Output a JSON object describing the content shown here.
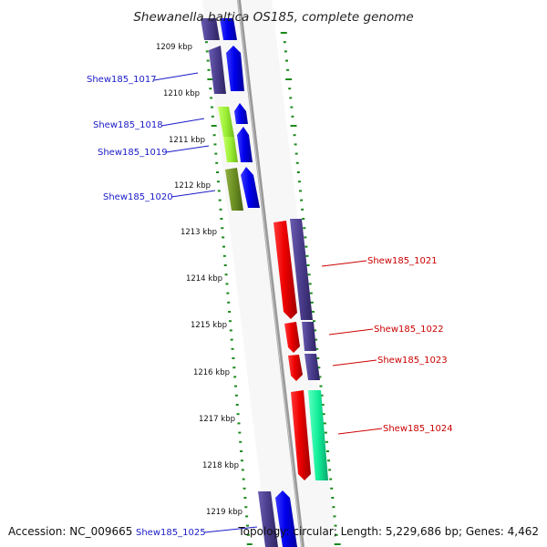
{
  "title": "Shewanella baltica OS185, complete genome",
  "footer": {
    "accession": "Accession: NC_009665",
    "topology": "Topology: circular; Length: 5,229,686 bp; Genes: 4,462"
  },
  "scale": {
    "ticks": [
      "1209 kbp",
      "1210 kbp",
      "1211 kbp",
      "1212 kbp",
      "1213 kbp",
      "1214 kbp",
      "1215 kbp",
      "1216 kbp",
      "1217 kbp",
      "1218 kbp",
      "1219 kbp"
    ]
  },
  "genes": [
    {
      "label": "Shew185_1017",
      "strand": "forward",
      "color": "#1a1ac8"
    },
    {
      "label": "Shew185_1018",
      "strand": "forward",
      "color": "#1a1ac8"
    },
    {
      "label": "Shew185_1019",
      "strand": "forward",
      "color": "#1a1ac8"
    },
    {
      "label": "Shew185_1020",
      "strand": "forward",
      "color": "#1a1ac8"
    },
    {
      "label": "Shew185_1021",
      "strand": "reverse",
      "color": "#cc0000"
    },
    {
      "label": "Shew185_1022",
      "strand": "reverse",
      "color": "#cc0000"
    },
    {
      "label": "Shew185_1023",
      "strand": "reverse",
      "color": "#cc0000"
    },
    {
      "label": "Shew185_1024",
      "strand": "reverse",
      "color": "#cc0000"
    },
    {
      "label": "Shew185_1025",
      "strand": "forward",
      "color": "#1a1ac8"
    }
  ],
  "colors": {
    "forward_cds": "#0000ee",
    "reverse_cds": "#ee0000",
    "cog_purple": "#4a3c8c",
    "cog_lime": "#99ee33",
    "cog_olive": "#6b8e23",
    "cog_aqua": "#11ee99",
    "tick_green": "#1c8a1c",
    "backbone": "#888888"
  }
}
